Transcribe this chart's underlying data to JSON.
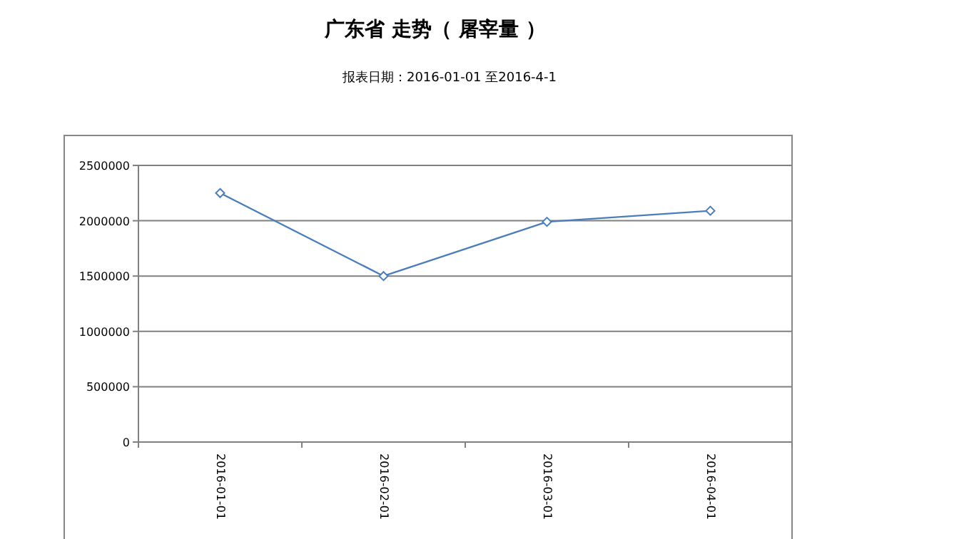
{
  "chart_data": {
    "type": "line",
    "title": "广东省 走势（ 屠宰量 ）",
    "subtitle": "报表日期：2016-01-01 至2016-4-1",
    "categories": [
      "2016-01-01",
      "2016-02-01",
      "2016-03-01",
      "2016-04-01"
    ],
    "series": [
      {
        "color": "#4a7ebb",
        "values": [
          2250000,
          1500000,
          1990000,
          2090000
        ]
      }
    ],
    "ylim": [
      0,
      2500000
    ],
    "yticks": [
      0,
      500000,
      1000000,
      1500000,
      2000000,
      2500000
    ],
    "grid": "y",
    "marker": "diamond",
    "line_style": "solid"
  }
}
